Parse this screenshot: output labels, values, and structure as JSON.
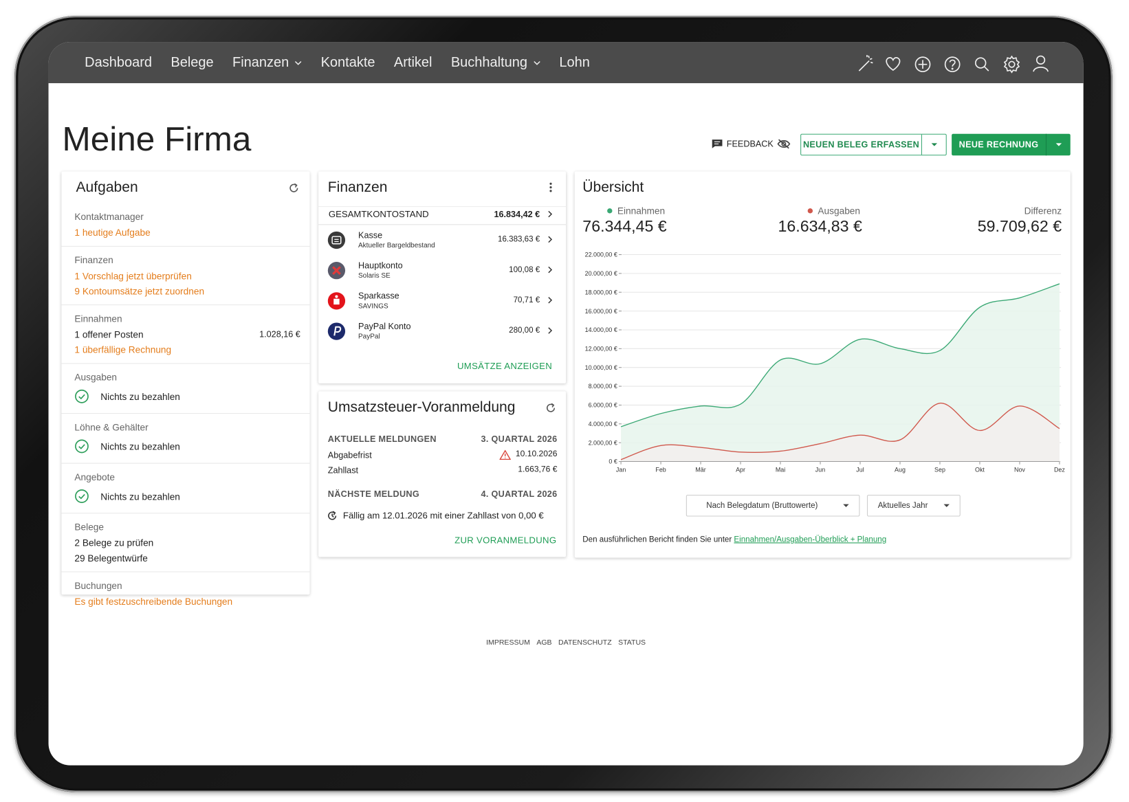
{
  "nav": {
    "items": [
      {
        "label": "Dashboard",
        "dropdown": false
      },
      {
        "label": "Belege",
        "dropdown": false
      },
      {
        "label": "Finanzen",
        "dropdown": true
      },
      {
        "label": "Kontakte",
        "dropdown": false
      },
      {
        "label": "Artikel",
        "dropdown": false
      },
      {
        "label": "Buchhaltung",
        "dropdown": true
      },
      {
        "label": "Lohn",
        "dropdown": false
      }
    ]
  },
  "header": {
    "title": "Meine Firma",
    "feedback": "FEEDBACK",
    "new_receipt": "NEUEN BELEG ERFASSEN",
    "new_invoice": "NEUE RECHNUNG"
  },
  "tasks": {
    "title": "Aufgaben",
    "sections": [
      {
        "heading": "Kontaktmanager",
        "lines": [
          {
            "text": "1 heutige Aufgabe",
            "style": "link"
          }
        ]
      },
      {
        "heading": "Finanzen",
        "lines": [
          {
            "text": "1 Vorschlag jetzt überprüfen",
            "style": "link"
          },
          {
            "text": "9 Kontoumsätze jetzt zuordnen",
            "style": "link"
          }
        ]
      },
      {
        "heading": "Einnahmen",
        "lines": [
          {
            "text": "1 offener Posten",
            "amount": "1.028,16 €",
            "style": "plain"
          },
          {
            "text": "1 überfällige Rechnung",
            "style": "link"
          }
        ]
      },
      {
        "heading": "Ausgaben",
        "lines": [
          {
            "text": "Nichts zu bezahlen",
            "style": "check"
          }
        ]
      },
      {
        "heading": "Löhne & Gehälter",
        "lines": [
          {
            "text": "Nichts zu bezahlen",
            "style": "check"
          }
        ]
      },
      {
        "heading": "Angebote",
        "lines": [
          {
            "text": "Nichts zu bezahlen",
            "style": "check"
          }
        ]
      },
      {
        "heading": "Belege",
        "lines": [
          {
            "text": "2 Belege zu prüfen",
            "style": "plain"
          },
          {
            "text": "29 Belegentwürfe",
            "style": "plain"
          }
        ]
      },
      {
        "heading": "Buchungen",
        "lines": [
          {
            "text": "Es gibt festzuschreibende Buchungen",
            "style": "link"
          }
        ]
      }
    ]
  },
  "finance": {
    "title": "Finanzen",
    "total_label": "GESAMTKONTOSTAND",
    "total": "16.834,42 €",
    "accounts": [
      {
        "name": "Kasse",
        "sub": "Aktueller Bargeldbestand",
        "amount": "16.383,63 €"
      },
      {
        "name": "Hauptkonto",
        "sub": "Solaris SE",
        "amount": "100,08 €"
      },
      {
        "name": "Sparkasse",
        "sub": "SAVINGS",
        "amount": "70,71 €"
      },
      {
        "name": "PayPal Konto",
        "sub": "PayPal",
        "amount": "280,00 €"
      }
    ],
    "link": "UMSÄTZE ANZEIGEN"
  },
  "vat": {
    "title": "Umsatzsteuer-Voranmeldung",
    "current_label": "AKTUELLE MELDUNGEN",
    "current_period": "3. QUARTAL 2026",
    "rows": [
      {
        "label": "Abgabefrist",
        "value": "10.10.2026",
        "warning": true
      },
      {
        "label": "Zahllast",
        "value": "1.663,76 €",
        "warning": false
      }
    ],
    "next_label": "NÄCHSTE MELDUNG",
    "next_period": "4. QUARTAL 2026",
    "due_text": "Fällig am 12.01.2026 mit einer Zahllast von 0,00 €",
    "link": "ZUR VORANMELDUNG"
  },
  "overview": {
    "title": "Übersicht",
    "totals": [
      "76.344,45 €",
      "16.634,83 €"
    ],
    "difference_label": "Differenz",
    "difference": "59.709,62 €",
    "chart": {
      "type": "area",
      "categories": [
        "Jan",
        "Feb",
        "Mär",
        "Apr",
        "Mai",
        "Jun",
        "Jul",
        "Aug",
        "Sep",
        "Okt",
        "Nov",
        "Dez"
      ],
      "series": [
        {
          "name": "Einnahmen",
          "color": "#3aa874",
          "fill": "#e6f5ec",
          "values": [
            3700,
            5100,
            5900,
            6100,
            10800,
            10400,
            13000,
            12000,
            11800,
            16400,
            17400,
            18900
          ]
        },
        {
          "name": "Ausgaben",
          "color": "#d0584c",
          "fill": "#f3efed",
          "values": [
            200,
            1700,
            1500,
            1000,
            1100,
            1900,
            2800,
            2300,
            6200,
            3300,
            5900,
            3500
          ]
        }
      ],
      "ylim": [
        0,
        22000
      ],
      "yticks": [
        {
          "value": 0,
          "label": "0 €"
        },
        {
          "value": 2000,
          "label": "2.000,00 €"
        },
        {
          "value": 4000,
          "label": "4.000,00 €"
        },
        {
          "value": 6000,
          "label": "6.000,00 €"
        },
        {
          "value": 8000,
          "label": "8.000,00 €"
        },
        {
          "value": 10000,
          "label": "10.000,00 €"
        },
        {
          "value": 12000,
          "label": "12.000,00 €"
        },
        {
          "value": 14000,
          "label": "14.000,00 €"
        },
        {
          "value": 16000,
          "label": "16.000,00 €"
        },
        {
          "value": 18000,
          "label": "18.000,00 €"
        },
        {
          "value": 20000,
          "label": "20.000,00 €"
        },
        {
          "value": 22000,
          "label": "22.000,00 €"
        }
      ],
      "grid": true
    },
    "filters": [
      "Nach Belegdatum (Bruttowerte)",
      "Aktuelles Jahr"
    ],
    "footnote": "Den ausführlichen Bericht finden Sie unter ",
    "footnote_link": "Einnahmen/Ausgaben-Überblick + Planung"
  },
  "footer": {
    "links": [
      "IMPRESSUM",
      "AGB",
      "DATENSCHUTZ",
      "STATUS"
    ]
  }
}
